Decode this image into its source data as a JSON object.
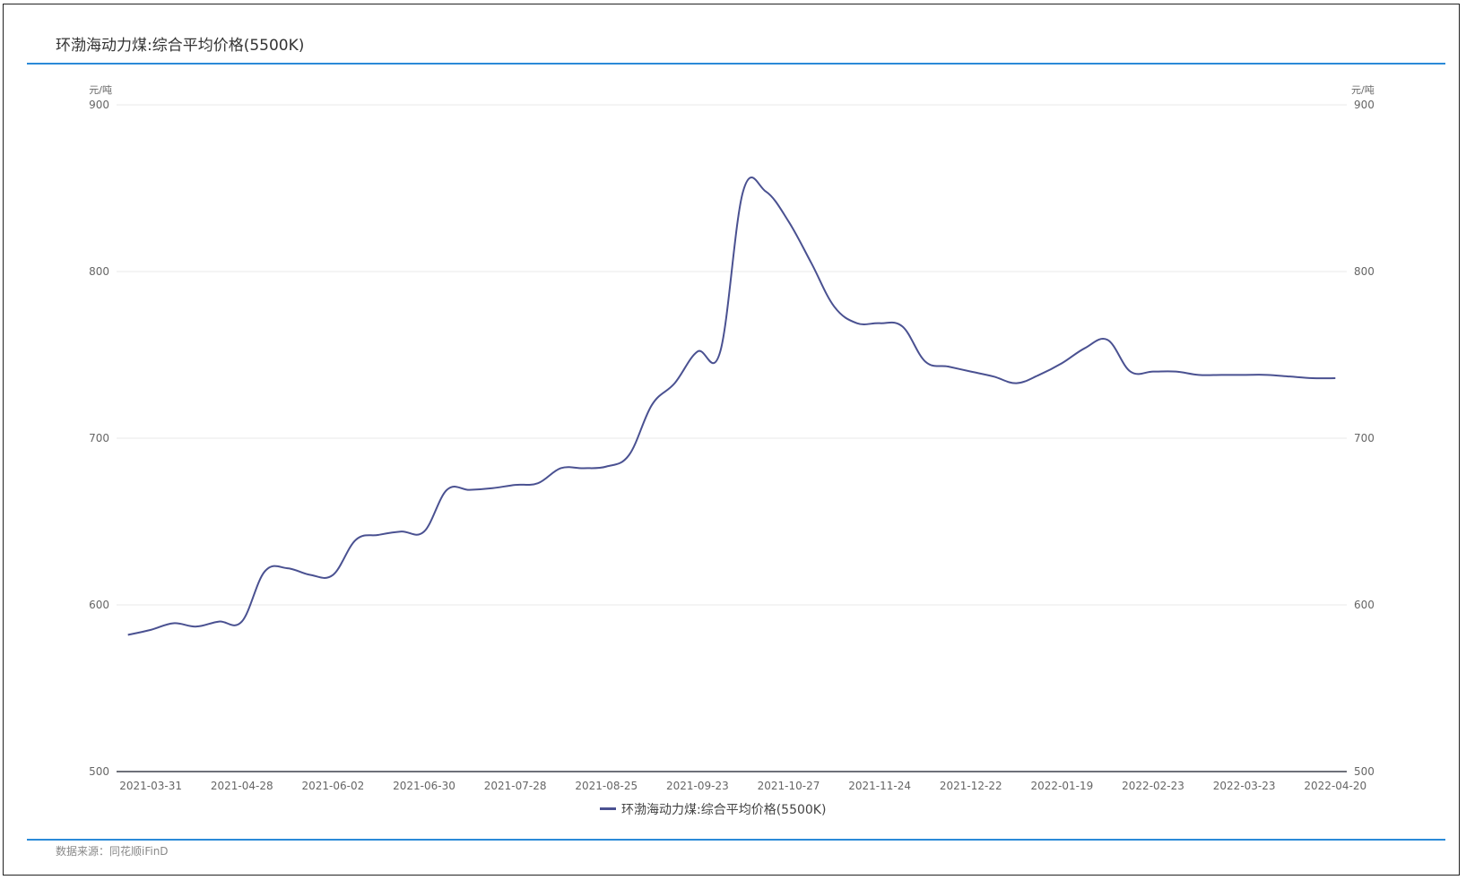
{
  "title": "环渤海动力煤:综合平均价格(5500K)",
  "source": "数据来源：同花顺iFinD",
  "colors": {
    "series": "#4a5191",
    "accent": "#2b8ad8",
    "grid": "#e8e8e8",
    "axis": "#6e7079"
  },
  "chart_data": {
    "type": "line",
    "title": "环渤海动力煤:综合平均价格(5500K)",
    "y_unit_left": "元/吨",
    "y_unit_right": "元/吨",
    "ylim": [
      500,
      900
    ],
    "yticks": [
      500,
      600,
      700,
      800,
      900
    ],
    "grid": "horizontal",
    "legend_position": "bottom-center",
    "x_tick_labels": [
      "2021-03-31",
      "2021-04-28",
      "2021-06-02",
      "2021-06-30",
      "2021-07-28",
      "2021-08-25",
      "2021-09-23",
      "2021-10-27",
      "2021-11-24",
      "2021-12-22",
      "2022-01-19",
      "2022-02-23",
      "2022-03-23",
      "2022-04-20"
    ],
    "x": [
      "2021-03-24",
      "2021-03-31",
      "2021-04-07",
      "2021-04-14",
      "2021-04-21",
      "2021-04-28",
      "2021-05-12",
      "2021-05-19",
      "2021-05-26",
      "2021-06-02",
      "2021-06-09",
      "2021-06-16",
      "2021-06-23",
      "2021-06-30",
      "2021-07-07",
      "2021-07-14",
      "2021-07-21",
      "2021-07-28",
      "2021-08-04",
      "2021-08-11",
      "2021-08-18",
      "2021-08-25",
      "2021-09-01",
      "2021-09-08",
      "2021-09-15",
      "2021-09-23",
      "2021-09-29",
      "2021-10-13",
      "2021-10-20",
      "2021-10-27",
      "2021-11-03",
      "2021-11-10",
      "2021-11-17",
      "2021-11-24",
      "2021-12-01",
      "2021-12-08",
      "2021-12-15",
      "2021-12-22",
      "2021-12-29",
      "2022-01-05",
      "2022-01-12",
      "2022-01-19",
      "2022-01-26",
      "2022-02-09",
      "2022-02-16",
      "2022-02-23",
      "2022-03-02",
      "2022-03-09",
      "2022-03-16",
      "2022-03-23",
      "2022-03-30",
      "2022-04-06",
      "2022-04-13",
      "2022-04-20"
    ],
    "series": [
      {
        "name": "环渤海动力煤:综合平均价格(5500K)",
        "values": [
          582,
          585,
          589,
          587,
          590,
          590,
          620,
          622,
          618,
          618,
          639,
          642,
          644,
          644,
          669,
          669,
          670,
          672,
          673,
          682,
          682,
          683,
          690,
          720,
          733,
          752,
          752,
          848,
          848,
          830,
          805,
          779,
          769,
          769,
          767,
          746,
          743,
          740,
          737,
          733,
          738,
          745,
          754,
          759,
          740,
          740,
          740,
          738,
          738,
          738,
          738,
          737,
          736,
          736
        ]
      }
    ]
  }
}
